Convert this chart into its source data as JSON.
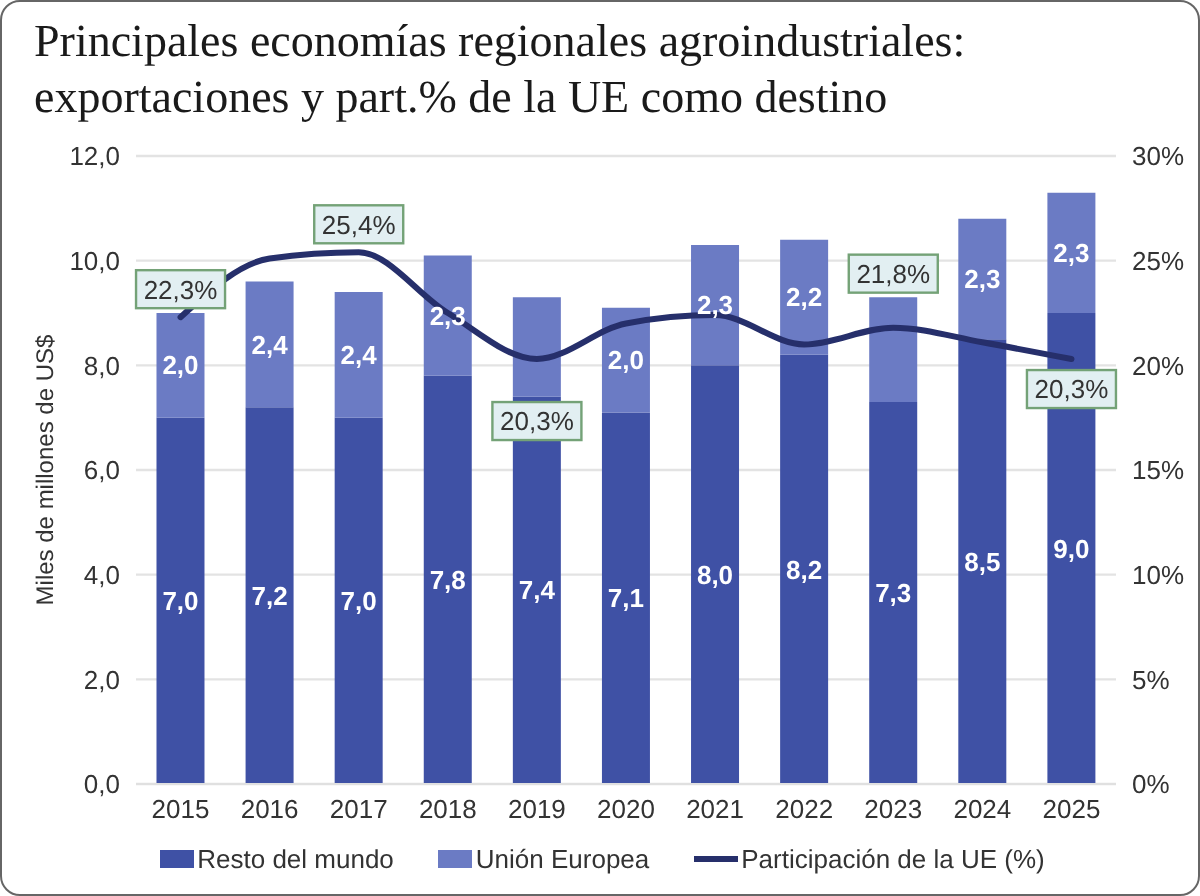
{
  "chart_data": {
    "type": "bar",
    "title": "Principales economías regionales agroindustriales: exportaciones y part.% de la UE como destino",
    "ylabel": "Miles de millones de US$",
    "categories": [
      "2015",
      "2016",
      "2017",
      "2018",
      "2019",
      "2020",
      "2021",
      "2022",
      "2023",
      "2024",
      "2025"
    ],
    "series": [
      {
        "name": "Resto del mundo",
        "color": "#3f51a5",
        "values": [
          7.0,
          7.2,
          7.0,
          7.8,
          7.4,
          7.1,
          8.0,
          8.2,
          7.3,
          8.5,
          9.0
        ],
        "value_labels": [
          "7,0",
          "7,2",
          "7,0",
          "7,8",
          "7,4",
          "7,1",
          "8,0",
          "8,2",
          "7,3",
          "8,5",
          "9,0"
        ]
      },
      {
        "name": "Unión Europea",
        "color": "#6b7bc4",
        "values": [
          2.0,
          2.4,
          2.4,
          2.3,
          1.9,
          2.0,
          2.3,
          2.2,
          2.0,
          2.3,
          2.3
        ],
        "value_labels": [
          "2,0",
          "2,4",
          "2,4",
          "2,3",
          null,
          "2,0",
          "2,3",
          "2,2",
          null,
          "2,3",
          "2,3"
        ]
      },
      {
        "name": "Participación de la UE (%)",
        "type": "line",
        "axis": "y2",
        "color": "#262f6b",
        "values": [
          22.3,
          25.1,
          25.4,
          22.5,
          20.3,
          22.0,
          22.4,
          21.0,
          21.8,
          21.1,
          20.3
        ],
        "value_labels": [
          "22,3%",
          null,
          "25,4%",
          null,
          "20,3%",
          null,
          null,
          null,
          "21,8%",
          null,
          "20,3%"
        ]
      }
    ],
    "stacked": true,
    "ylim": [
      0,
      12
    ],
    "yticks": [
      {
        "value": 0,
        "label": "0,0"
      },
      {
        "value": 2,
        "label": "2,0"
      },
      {
        "value": 4,
        "label": "4,0"
      },
      {
        "value": 6,
        "label": "6,0"
      },
      {
        "value": 8,
        "label": "8,0"
      },
      {
        "value": 10,
        "label": "10,0"
      },
      {
        "value": 12,
        "label": "12,0"
      }
    ],
    "y2lim": [
      0,
      30
    ],
    "y2ticks": [
      {
        "value": 0,
        "label": "0%"
      },
      {
        "value": 5,
        "label": "5%"
      },
      {
        "value": 10,
        "label": "10%"
      },
      {
        "value": 15,
        "label": "15%"
      },
      {
        "value": 20,
        "label": "20%"
      },
      {
        "value": 25,
        "label": "25%"
      },
      {
        "value": 30,
        "label": "30%"
      }
    ],
    "grid": "y",
    "legend": "bottom",
    "line_style": "solid"
  }
}
